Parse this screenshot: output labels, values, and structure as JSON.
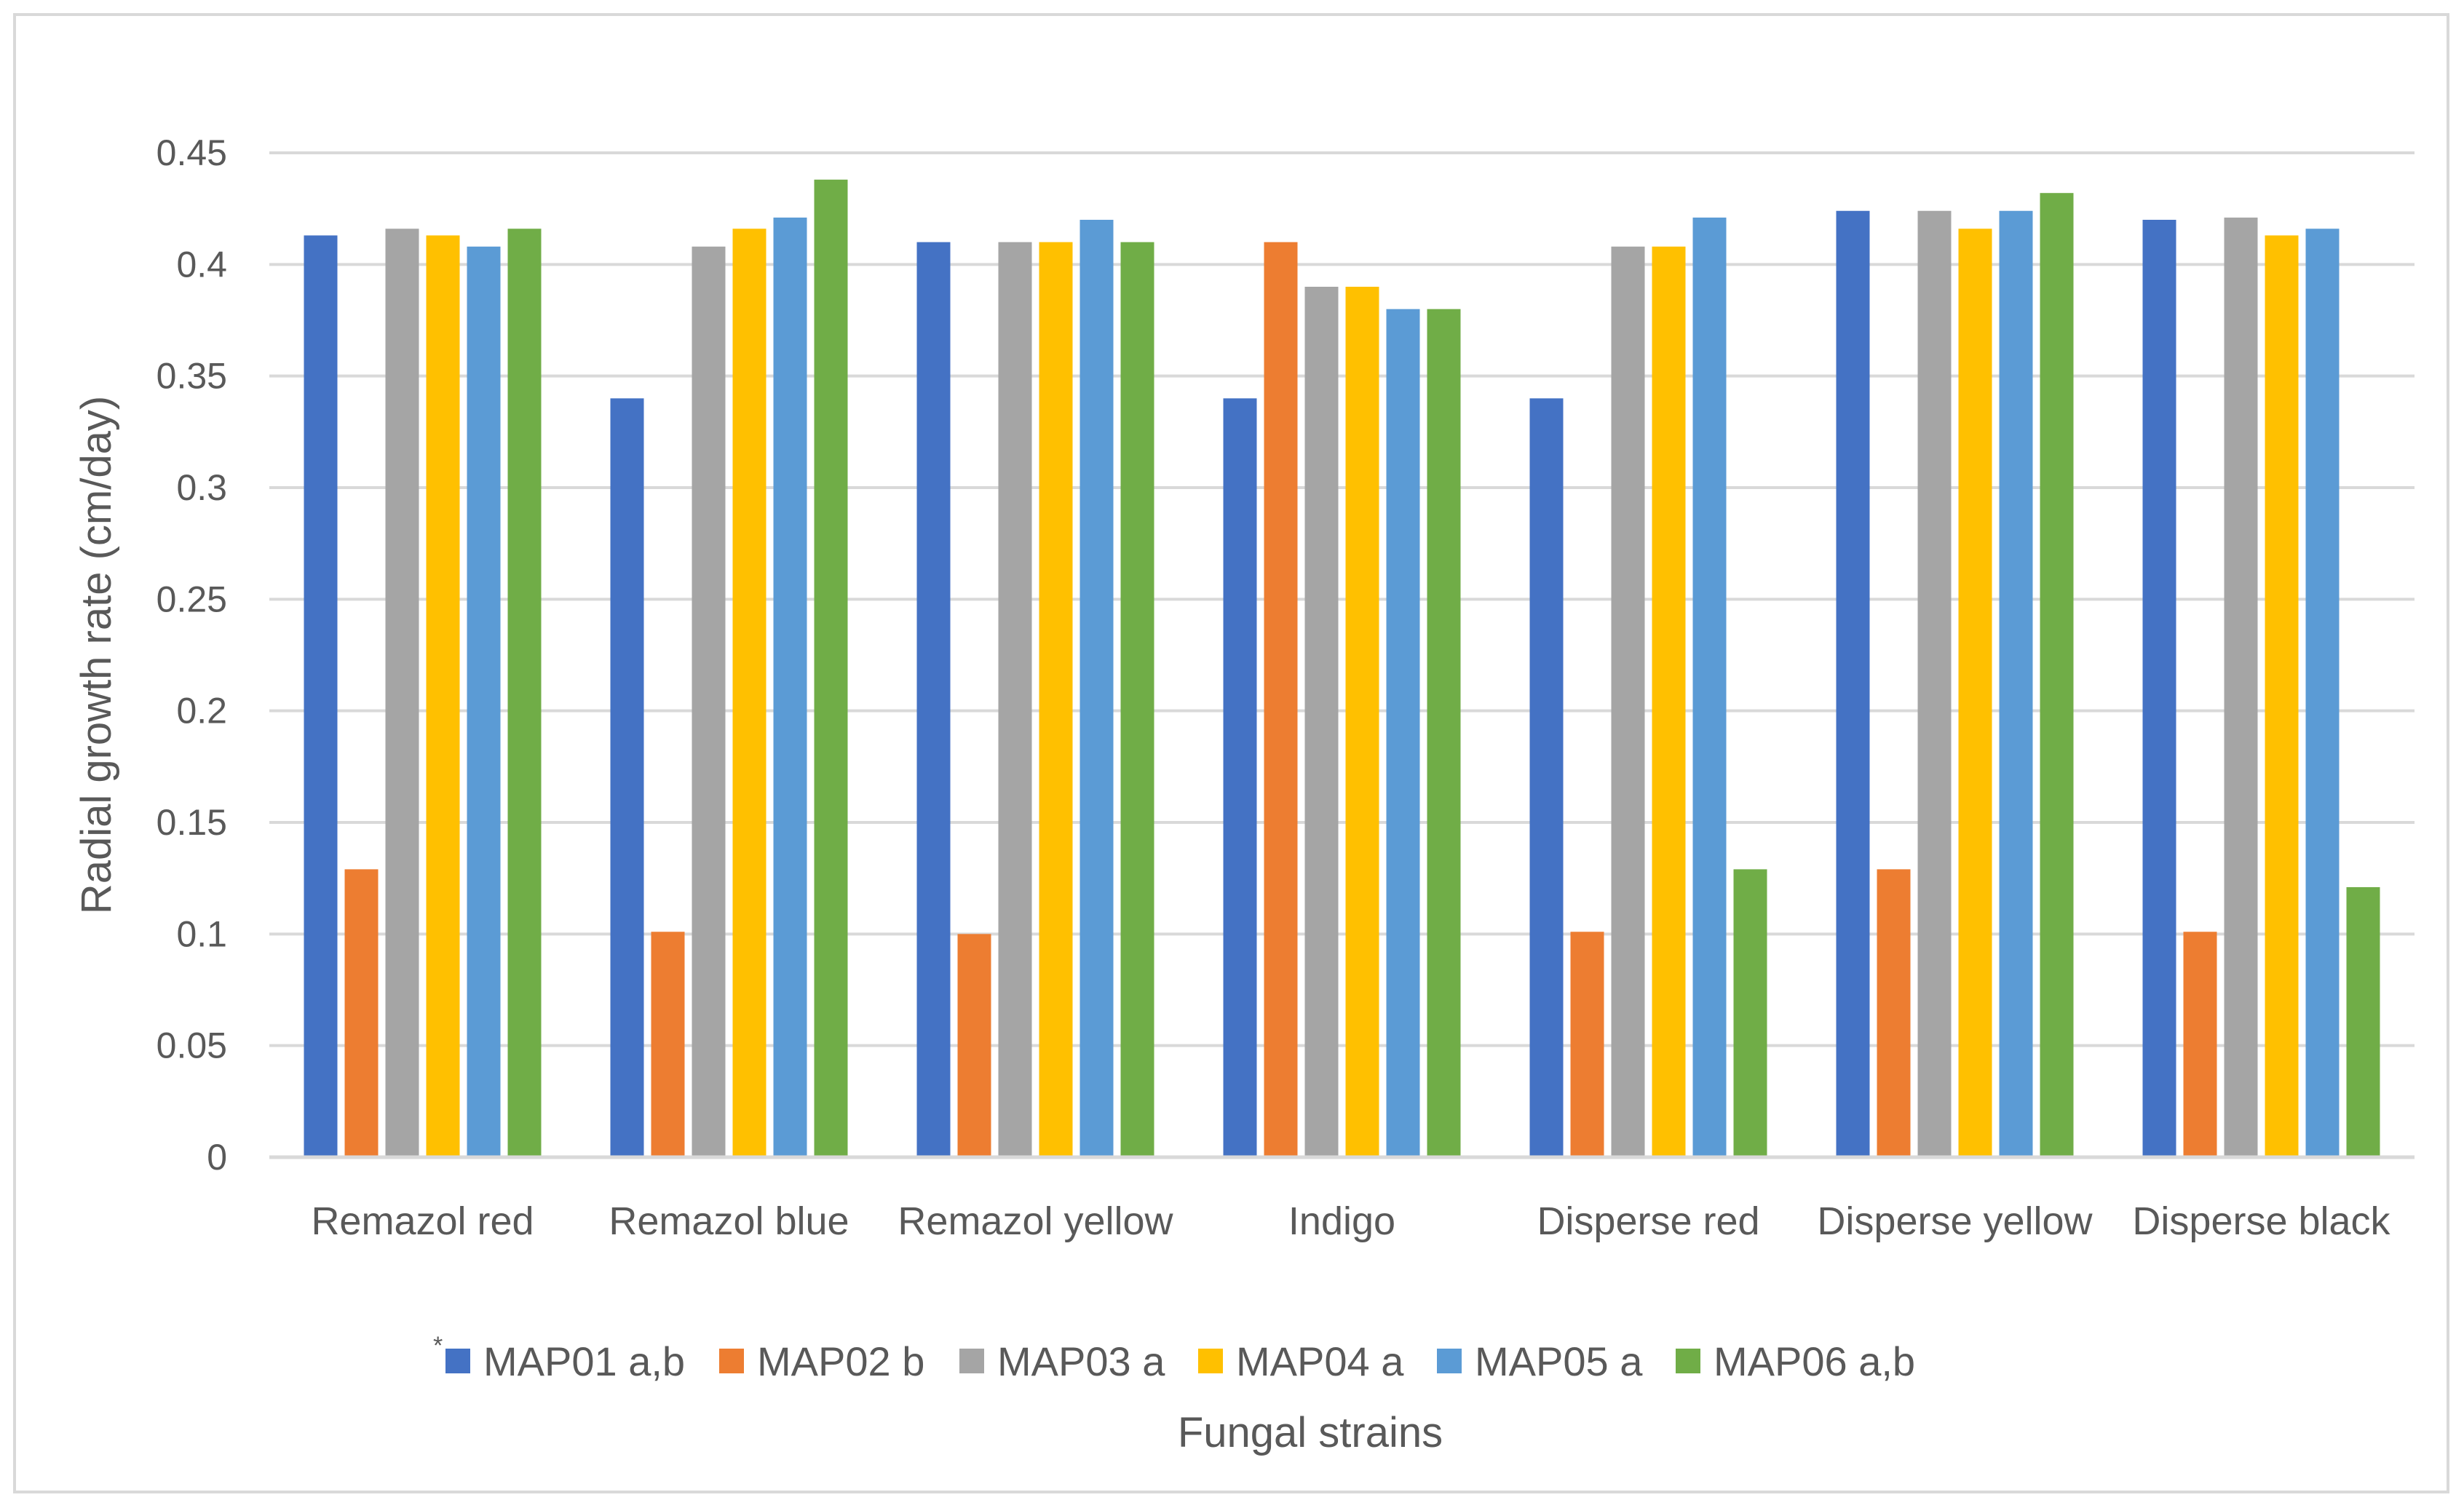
{
  "chart_data": {
    "type": "bar",
    "title": "",
    "xlabel": "Fungal strains",
    "ylabel": "Radial growth  rate (cm/day)",
    "ylim": [
      0,
      0.45
    ],
    "yticks": [
      "0",
      "0.05",
      "0.1",
      "0.15",
      "0.2",
      "0.25",
      "0.3",
      "0.35",
      "0.4",
      "0.45"
    ],
    "grid": true,
    "legend_position": "bottom",
    "legend_marker": "*",
    "categories": [
      "Remazol red",
      "Remazol blue",
      "Remazol yellow",
      "Indigo",
      "Disperse red",
      "Disperse yellow",
      "Disperse black"
    ],
    "series": [
      {
        "name": "MAP01 a,b",
        "color": "#4472C4",
        "values": [
          0.413,
          0.34,
          0.41,
          0.34,
          0.34,
          0.424,
          0.42
        ]
      },
      {
        "name": "MAP02 b",
        "color": "#ED7D31",
        "values": [
          0.129,
          0.101,
          0.1,
          0.41,
          0.101,
          0.129,
          0.101
        ]
      },
      {
        "name": "MAP03 a",
        "color": "#A5A5A5",
        "values": [
          0.416,
          0.408,
          0.41,
          0.39,
          0.408,
          0.424,
          0.421
        ]
      },
      {
        "name": "MAP04 a",
        "color": "#FFC000",
        "values": [
          0.413,
          0.416,
          0.41,
          0.39,
          0.408,
          0.416,
          0.413
        ]
      },
      {
        "name": "MAP05 a",
        "color": "#5B9BD5",
        "values": [
          0.408,
          0.421,
          0.42,
          0.38,
          0.421,
          0.424,
          0.416
        ]
      },
      {
        "name": "MAP06 a,b",
        "color": "#70AD47",
        "values": [
          0.416,
          0.438,
          0.41,
          0.38,
          0.129,
          0.432,
          0.121
        ]
      }
    ]
  }
}
